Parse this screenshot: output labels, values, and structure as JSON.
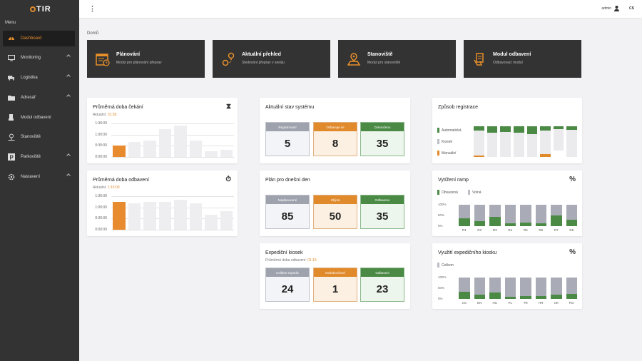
{
  "app": {
    "name": "TIR",
    "menu_title": "Menu"
  },
  "sidebar": {
    "items": [
      {
        "label": "Dashboard",
        "icon": "dashboard-icon",
        "active": true,
        "expandable": false
      },
      {
        "label": "Monitoring",
        "icon": "monitor-icon",
        "active": false,
        "expandable": true
      },
      {
        "label": "Logistika",
        "icon": "truck-icon",
        "active": false,
        "expandable": true
      },
      {
        "label": "Adresář",
        "icon": "folder-icon",
        "active": false,
        "expandable": true
      },
      {
        "label": "Modul odbavení",
        "icon": "hand-icon",
        "active": false,
        "expandable": false
      },
      {
        "label": "Stanoviště",
        "icon": "map-pin-icon",
        "active": false,
        "expandable": false
      },
      {
        "label": "Parkoviště",
        "icon": "parking-icon",
        "active": false,
        "expandable": true
      },
      {
        "label": "Nastavení",
        "icon": "settings-icon",
        "active": false,
        "expandable": true
      }
    ]
  },
  "topbar": {
    "user": "admin",
    "lang": "CS"
  },
  "breadcrumb": "Domů",
  "modules": [
    {
      "title": "Plánování",
      "subtitle": "Modul pro plánování přeprav",
      "icon": "calendar-icon"
    },
    {
      "title": "Aktuální přehled",
      "subtitle": "Sledování přeprav v areálu",
      "icon": "route-icon"
    },
    {
      "title": "Stanoviště",
      "subtitle": "Modul pro stanoviště",
      "icon": "map-icon"
    },
    {
      "title": "Modul odbavení",
      "subtitle": "Odbavovací modul",
      "icon": "hand-doc-icon"
    }
  ],
  "wait": {
    "title": "Průměrná doba čekání",
    "current_label": "Aktuální:",
    "current_value": "31:30",
    "y_ticks": [
      "1:30:00",
      "1:00:00",
      "0:30:00",
      "0:00:00"
    ],
    "icon": "hourglass-icon"
  },
  "proc": {
    "title": "Průměrná doba odbavení",
    "current_label": "Aktuální:",
    "current_value": "1:15:00",
    "y_ticks": [
      "1:30:00",
      "1:00:00",
      "0:30:00",
      "0:00:00"
    ],
    "icon": "stopwatch-icon"
  },
  "chart_data": [
    {
      "type": "bar",
      "title": "Průměrná doba čekání",
      "y_ticks": [
        "1:30:00",
        "1:00:00",
        "0:30:00",
        "0:00:00"
      ],
      "ylim_seconds": [
        0,
        5400
      ],
      "values_seconds": [
        1890,
        2400,
        2700,
        4500,
        5100,
        2700,
        900,
        1200
      ],
      "highlight_index": 0
    },
    {
      "type": "bar",
      "title": "Průměrná doba odbavení",
      "y_ticks": [
        "1:30:00",
        "1:00:00",
        "0:30:00",
        "0:00:00"
      ],
      "ylim_seconds": [
        0,
        5400
      ],
      "values_seconds": [
        4500,
        4200,
        4500,
        4500,
        4800,
        4200,
        2400,
        3000
      ],
      "highlight_index": 0
    },
    {
      "type": "bar",
      "title": "Způsob registrace",
      "stacked": true,
      "orientation": "vertical",
      "series": [
        {
          "name": "Automatická",
          "values": [
            15,
            22,
            18,
            20,
            25,
            15,
            10,
            12
          ]
        },
        {
          "name": "Kiosek",
          "values": [
            80,
            78,
            82,
            80,
            75,
            75,
            70,
            88
          ]
        },
        {
          "name": "Manuální",
          "values": [
            5,
            0,
            0,
            0,
            0,
            10,
            0,
            0
          ]
        }
      ]
    },
    {
      "type": "bar",
      "title": "Vytížení ramp",
      "stacked": true,
      "categories": [
        "R1",
        "R2",
        "R3",
        "R4",
        "R5",
        "R6",
        "R7",
        "R8"
      ],
      "ylim": [
        0,
        100
      ],
      "y_ticks": [
        "100%",
        "50%",
        "0%"
      ],
      "series": [
        {
          "name": "Obsazená",
          "values": [
            38,
            22,
            45,
            12,
            18,
            15,
            50,
            30
          ]
        },
        {
          "name": "Volná",
          "values": [
            62,
            78,
            55,
            88,
            82,
            85,
            50,
            70
          ]
        }
      ]
    },
    {
      "type": "bar",
      "title": "Využití expedičního kiosku",
      "stacked": true,
      "categories": [
        "CS",
        "EN",
        "HU",
        "PL",
        "TR",
        "HR",
        "UK",
        "RO"
      ],
      "ylim": [
        0,
        100
      ],
      "y_ticks": [
        "100%",
        "50%",
        "0%"
      ],
      "series": [
        {
          "name": "Celkem",
          "values": [
            35,
            20,
            30,
            10,
            15,
            12,
            20,
            25
          ]
        }
      ]
    }
  ],
  "system_state": {
    "title": "Aktuální stav systému",
    "tiles": [
      {
        "label": "Registrovaní",
        "value": "5",
        "color": "#9ea2ad"
      },
      {
        "label": "Odbavuje se",
        "value": "8",
        "color": "#e08a2b"
      },
      {
        "label": "Dokončeno",
        "value": "35",
        "color": "#4a8a45"
      }
    ]
  },
  "plan_today": {
    "title": "Plán pro dnešní den",
    "tiles": [
      {
        "label": "Naplánované",
        "value": "85",
        "color": "#9ea2ad"
      },
      {
        "label": "Zbývá",
        "value": "50",
        "color": "#e08a2b"
      },
      {
        "label": "Odbaveno",
        "value": "35",
        "color": "#4a8a45"
      }
    ]
  },
  "kiosk": {
    "title": "Expediční kiosek",
    "sub_label": "Průměrná doba odbavení:",
    "sub_value": "01:15",
    "tiles": [
      {
        "label": "Celkem expedic",
        "value": "24",
        "color": "#9ea2ad"
      },
      {
        "label": "Nedokončené",
        "value": "1",
        "color": "#e08a2b"
      },
      {
        "label": "Odbaveni",
        "value": "23",
        "color": "#4a8a45"
      }
    ]
  },
  "registration": {
    "title": "Způsob registrace",
    "legend": [
      "Automatická",
      "Kiosek",
      "Manuální"
    ]
  },
  "ramps": {
    "title": "Vytížení ramp",
    "legend": [
      "Obsazená",
      "Volná"
    ],
    "icon": "percent-icon"
  },
  "kiosk_usage": {
    "title": "Využití expedičního kiosku",
    "legend": [
      "Celkem"
    ],
    "icon": "percent-icon"
  },
  "colors": {
    "accent": "#e08a2b",
    "green": "#4a8a45",
    "grey": "#9ea2ad",
    "sidebar": "#333333"
  }
}
